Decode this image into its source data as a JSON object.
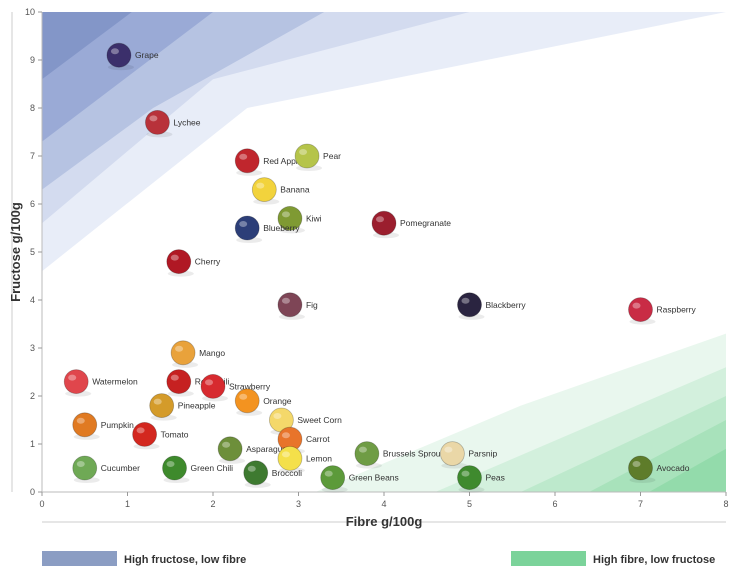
{
  "chart_data": {
    "type": "scatter",
    "xlabel": "Fibre g/100g",
    "ylabel": "Fructose g/100g",
    "xlim": [
      0,
      8
    ],
    "ylim": [
      0,
      10
    ],
    "x_ticks": [
      0,
      1,
      2,
      3,
      4,
      5,
      6,
      7,
      8
    ],
    "y_ticks": [
      0,
      1,
      2,
      3,
      4,
      5,
      6,
      7,
      8,
      9,
      10
    ],
    "grid": false,
    "points": [
      {
        "label": "Grape",
        "x": 0.9,
        "y": 9.1,
        "color": "#3b2f6b"
      },
      {
        "label": "Lychee",
        "x": 1.35,
        "y": 7.7,
        "color": "#b8323a"
      },
      {
        "label": "Red Apple",
        "x": 2.4,
        "y": 6.9,
        "color": "#c0262d"
      },
      {
        "label": "Pear",
        "x": 3.1,
        "y": 7.0,
        "color": "#b5c44a"
      },
      {
        "label": "Banana",
        "x": 2.6,
        "y": 6.3,
        "color": "#f2d33c"
      },
      {
        "label": "Kiwi",
        "x": 2.9,
        "y": 5.7,
        "color": "#7f9a33"
      },
      {
        "label": "Blueberry",
        "x": 2.4,
        "y": 5.5,
        "color": "#2c3e78"
      },
      {
        "label": "Pomegranate",
        "x": 4.0,
        "y": 5.6,
        "color": "#9b1e2e"
      },
      {
        "label": "Cherry",
        "x": 1.6,
        "y": 4.8,
        "color": "#b01824"
      },
      {
        "label": "Fig",
        "x": 2.9,
        "y": 3.9,
        "color": "#7e4556"
      },
      {
        "label": "Blackberry",
        "x": 5.0,
        "y": 3.9,
        "color": "#2a2440"
      },
      {
        "label": "Raspberry",
        "x": 7.0,
        "y": 3.8,
        "color": "#c92c45"
      },
      {
        "label": "Mango",
        "x": 1.65,
        "y": 2.9,
        "color": "#e9a23b"
      },
      {
        "label": "Red Chili",
        "x": 1.6,
        "y": 2.3,
        "color": "#c62121"
      },
      {
        "label": "Strawberry",
        "x": 2.0,
        "y": 2.2,
        "color": "#d72a2f"
      },
      {
        "label": "Watermelon",
        "x": 0.4,
        "y": 2.3,
        "color": "#e0464c"
      },
      {
        "label": "Orange",
        "x": 2.4,
        "y": 1.9,
        "color": "#f39320"
      },
      {
        "label": "Pumpkin",
        "x": 0.5,
        "y": 1.4,
        "color": "#e07a22"
      },
      {
        "label": "Pineapple",
        "x": 1.4,
        "y": 1.8,
        "color": "#d49b2a"
      },
      {
        "label": "Sweet Corn",
        "x": 2.8,
        "y": 1.5,
        "color": "#f4d86a"
      },
      {
        "label": "Carrot",
        "x": 2.9,
        "y": 1.1,
        "color": "#e8742a"
      },
      {
        "label": "Asparagus",
        "x": 2.2,
        "y": 0.9,
        "color": "#6d8f3a"
      },
      {
        "label": "Tomato",
        "x": 1.2,
        "y": 1.2,
        "color": "#d3271f"
      },
      {
        "label": "Lemon",
        "x": 2.9,
        "y": 0.7,
        "color": "#f4e04a"
      },
      {
        "label": "Brussels Sprout",
        "x": 3.8,
        "y": 0.8,
        "color": "#6f9c45"
      },
      {
        "label": "Parsnip",
        "x": 4.8,
        "y": 0.8,
        "color": "#ead7a7"
      },
      {
        "label": "Cucumber",
        "x": 0.5,
        "y": 0.5,
        "color": "#6fa955"
      },
      {
        "label": "Green Chili",
        "x": 1.55,
        "y": 0.5,
        "color": "#3e8a2c"
      },
      {
        "label": "Broccoli",
        "x": 2.5,
        "y": 0.4,
        "color": "#3e7a30"
      },
      {
        "label": "Green Beans",
        "x": 3.4,
        "y": 0.3,
        "color": "#5c9a3a"
      },
      {
        "label": "Peas",
        "x": 5.0,
        "y": 0.3,
        "color": "#3f8a2e"
      },
      {
        "label": "Avocado",
        "x": 7.0,
        "y": 0.5,
        "color": "#5e7c2a"
      }
    ],
    "legend": [
      {
        "label": "High fructose, low fibre",
        "color": "#8b9dc3"
      },
      {
        "label": "High fibre, low fructose",
        "color": "#7bd39a"
      }
    ]
  }
}
